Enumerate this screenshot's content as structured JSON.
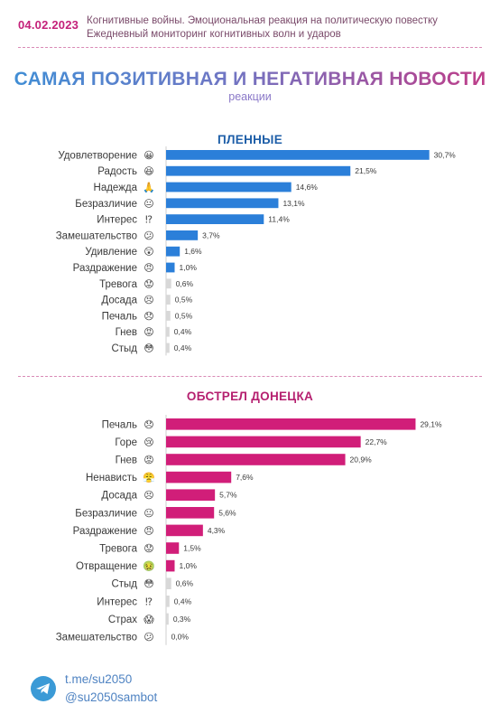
{
  "header": {
    "date": "04.02.2023",
    "subtitle_line1": "Когнитивные войны. Эмоциональная реакция на политическую повестку",
    "subtitle_line2": "Ежедневный мониторинг когнитивных волн и ударов"
  },
  "title": "САМАЯ ПОЗИТИВНАЯ И НЕГАТИВНАЯ НОВОСТИ",
  "title_sub": "реакции",
  "colors": {
    "blue_bar": "#2b7fd9",
    "pink_bar": "#d11e79",
    "faint_bar": "#d8d8d8"
  },
  "chart_data": [
    {
      "type": "bar",
      "orientation": "horizontal",
      "title": "ПЛЕННЫЕ",
      "categories": [
        "Удовлетворение",
        "Радость",
        "Надежда",
        "Безразличие",
        "Интерес",
        "Замешательство",
        "Удивление",
        "Раздражение",
        "Тревога",
        "Досада",
        "Печаль",
        "Гнев",
        "Стыд"
      ],
      "icons": [
        "😀",
        "😆",
        "🙏",
        "😐",
        "⁉",
        "😕",
        "😲",
        "😠",
        "😟",
        "😣",
        "😞",
        "😡",
        "😳"
      ],
      "values": [
        30.7,
        21.5,
        14.6,
        13.1,
        11.4,
        3.7,
        1.6,
        1.0,
        0.6,
        0.5,
        0.5,
        0.4,
        0.4
      ],
      "value_labels": [
        "30,7%",
        "21,5%",
        "14,6%",
        "13,1%",
        "11,4%",
        "3,7%",
        "1,6%",
        "1,0%",
        "0,6%",
        "0,5%",
        "0,5%",
        "0,4%",
        "0,4%"
      ],
      "unit": "%"
    },
    {
      "type": "bar",
      "orientation": "horizontal",
      "title": "ОБСТРЕЛ ДОНЕЦКА",
      "categories": [
        "Печаль",
        "Горе",
        "Гнев",
        "Ненависть",
        "Досада",
        "Безразличие",
        "Раздражение",
        "Тревога",
        "Отвращение",
        "Стыд",
        "Интерес",
        "Страх",
        "Замешательство"
      ],
      "icons": [
        "😞",
        "😢",
        "😡",
        "😤",
        "😣",
        "😐",
        "😠",
        "😟",
        "🤢",
        "😳",
        "⁉",
        "😱",
        "😕"
      ],
      "values": [
        29.1,
        22.7,
        20.9,
        7.6,
        5.7,
        5.6,
        4.3,
        1.5,
        1.0,
        0.6,
        0.4,
        0.3,
        0.0
      ],
      "value_labels": [
        "29,1%",
        "22,7%",
        "20,9%",
        "7,6%",
        "5,7%",
        "5,6%",
        "4,3%",
        "1,5%",
        "1,0%",
        "0,6%",
        "0,4%",
        "0,3%",
        "0,0%"
      ],
      "unit": "%"
    }
  ],
  "footer": {
    "icon": "telegram-icon",
    "link1": "t.me/su2050",
    "link2": "@su2050sambot"
  }
}
